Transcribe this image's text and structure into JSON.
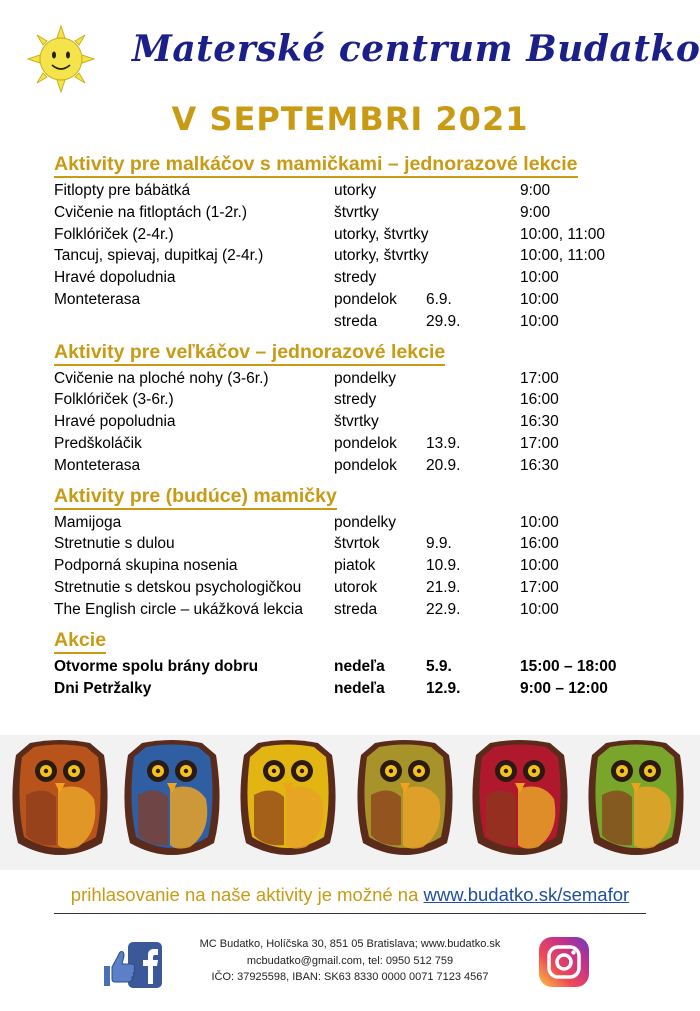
{
  "header": {
    "logo_icon": "sun-face-icon",
    "title": "Materské centrum Budatko",
    "month_title": "V SEPTEMBRI 2021"
  },
  "sections": [
    {
      "title": "Aktivity pre malkáčov s mamičkami – jednorazové lekcie",
      "rows": [
        {
          "name": "Fitlopty pre bábätká",
          "day": "utorky",
          "date": "",
          "time": "9:00"
        },
        {
          "name": "Cvičenie na fitloptách (1-2r.)",
          "day": "štvrtky",
          "date": "",
          "time": "9:00"
        },
        {
          "name": "Folklóriček (2-4r.)",
          "day": "utorky, štvrtky",
          "date": "",
          "time": "10:00, 11:00"
        },
        {
          "name": "Tancuj, spievaj, dupitkaj (2-4r.)",
          "day": "utorky, štvrtky",
          "date": "",
          "time": "10:00, 11:00"
        },
        {
          "name": "Hravé dopoludnia",
          "day": "stredy",
          "date": "",
          "time": "10:00"
        },
        {
          "name": "Monteterasa",
          "day": "pondelok",
          "date": "6.9.",
          "time": "10:00"
        },
        {
          "name": "",
          "day": "streda",
          "date": "29.9.",
          "time": "10:00"
        }
      ]
    },
    {
      "title": "Aktivity pre veľkáčov – jednorazové lekcie",
      "rows": [
        {
          "name": "Cvičenie na ploché nohy (3-6r.)",
          "day": "pondelky",
          "date": "",
          "time": "17:00"
        },
        {
          "name": "Folklóriček (3-6r.)",
          "day": "stredy",
          "date": "",
          "time": "16:00"
        },
        {
          "name": "Hravé popoludnia",
          "day": "štvrtky",
          "date": "",
          "time": "16:30"
        },
        {
          "name": "Predškoláčik",
          "day": "pondelok",
          "date": "13.9.",
          "time": "17:00"
        },
        {
          "name": "Monteterasa",
          "day": "pondelok",
          "date": "20.9.",
          "time": "16:30"
        }
      ]
    },
    {
      "title": "Aktivity pre (budúce) mamičky",
      "rows": [
        {
          "name": "Mamijoga",
          "day": "pondelky",
          "date": "",
          "time": "10:00"
        },
        {
          "name": "Stretnutie s dulou",
          "day": "štvrtok",
          "date": "9.9.",
          "time": "16:00"
        },
        {
          "name": "Podporná skupina nosenia",
          "day": "piatok",
          "date": "10.9.",
          "time": "10:00"
        },
        {
          "name": "Stretnutie s detskou psychologičkou",
          "day": "utorok",
          "date": "21.9.",
          "time": "17:00"
        },
        {
          "name": "The English circle – ukážková lekcia",
          "day": "streda",
          "date": "22.9.",
          "time": "10:00"
        }
      ]
    },
    {
      "title": "Akcie",
      "bold": true,
      "rows": [
        {
          "name": "Otvorme spolu brány dobru",
          "day": "nedeľa",
          "date": "5.9.",
          "time": "15:00 – 18:00"
        },
        {
          "name": "Dni Petržalky",
          "day": "nedeľa",
          "date": "12.9.",
          "time": "9:00 – 12:00"
        }
      ]
    }
  ],
  "owls": {
    "icon": "felt-owl-icon",
    "colors": [
      "#b8541b",
      "#2f5ea3",
      "#e2b513",
      "#a8922a",
      "#b0182d",
      "#7aa52b"
    ]
  },
  "footer": {
    "signup_text": "prihlasovanie na naše aktivity je možné na ",
    "signup_link": "www.budatko.sk/semafor",
    "contact_lines": [
      "MC Budatko, Holíčska 30, 851 05 Bratislava; www.budatko.sk",
      "mcbudatko@gmail.com, tel: 0950 512 759",
      "IČO: 37925598, IBAN: SK63 8330 0000 0071 7123 4567"
    ],
    "facebook_icon": "facebook-like-icon",
    "instagram_icon": "instagram-icon"
  },
  "colors": {
    "brand_blue": "#1a1f8a",
    "gold": "#c99a14",
    "link": "#1f4e9d"
  }
}
